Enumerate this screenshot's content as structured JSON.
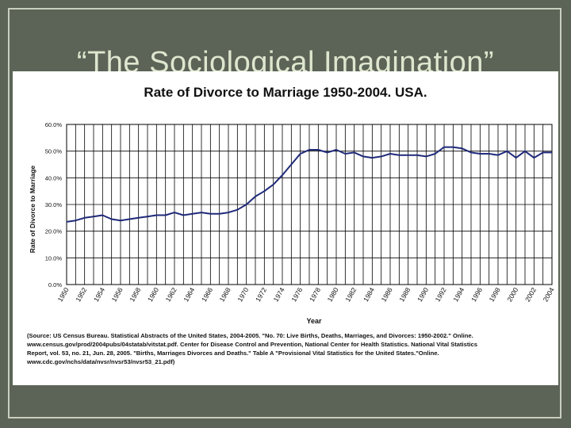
{
  "slide": {
    "title": "“The Sociological Imagination”"
  },
  "colors": {
    "background": "#5b6456",
    "title_text": "#dfe6cf",
    "line": "#1f2a7a",
    "grid": "#000000"
  },
  "chart_data": {
    "type": "line",
    "title": "Rate of Divorce to Marriage 1950-2004. USA.",
    "xlabel": "Year",
    "ylabel": "Rate of Divorce to Marriage",
    "xlim": [
      1950,
      2004
    ],
    "ylim": [
      0,
      60
    ],
    "yticks": [
      "0.0%",
      "10.0%",
      "20.0%",
      "30.0%",
      "40.0%",
      "50.0%",
      "60.0%"
    ],
    "xticks": [
      "1950",
      "1952",
      "1954",
      "1956",
      "1958",
      "1960",
      "1962",
      "1964",
      "1966",
      "1968",
      "1970",
      "1972",
      "1974",
      "1976",
      "1978",
      "1980",
      "1982",
      "1984",
      "1986",
      "1988",
      "1990",
      "1992",
      "1994",
      "1996",
      "1998",
      "2000",
      "2002",
      "2004"
    ],
    "grid": true,
    "series": [
      {
        "x": [
          1950,
          1951,
          1952,
          1953,
          1954,
          1955,
          1956,
          1957,
          1958,
          1959,
          1960,
          1961,
          1962,
          1963,
          1964,
          1965,
          1966,
          1967,
          1968,
          1969,
          1970,
          1971,
          1972,
          1973,
          1974,
          1975,
          1976,
          1977,
          1978,
          1979,
          1980,
          1981,
          1982,
          1983,
          1984,
          1985,
          1986,
          1987,
          1988,
          1989,
          1990,
          1991,
          1992,
          1993,
          1994,
          1995,
          1996,
          1997,
          1998,
          1999,
          2000,
          2001,
          2002,
          2003,
          2004
        ],
        "y": [
          23.5,
          24.0,
          25.0,
          25.5,
          26.0,
          24.5,
          24.0,
          24.5,
          25.0,
          25.5,
          26.0,
          26.0,
          27.0,
          26.0,
          26.5,
          27.0,
          26.5,
          26.5,
          27.0,
          28.0,
          30.0,
          33.0,
          35.0,
          37.5,
          41.0,
          45.0,
          49.0,
          50.5,
          50.5,
          49.5,
          50.5,
          49.0,
          49.5,
          48.0,
          47.5,
          48.0,
          49.0,
          48.5,
          48.5,
          48.5,
          48.0,
          49.0,
          51.5,
          51.5,
          51.0,
          49.5,
          49.0,
          49.0,
          48.5,
          50.0,
          47.5,
          50.0,
          47.5,
          49.5,
          49.5
        ]
      }
    ]
  },
  "source": {
    "lines": [
      "(Source: US Census Bureau. Statistical Abstracts of the United States, 2004-2005. \"No. 70: Live Births, Deaths, Marriages, and Divorces: 1950-2002.\" Online.",
      "www.census.gov/prod/2004pubs/04statab/vitstat.pdf. Center for Disease Control and Prevention, National Center for Health Statistics. National Vital Statistics",
      " Report, vol. 53, no. 21, Jun. 28, 2005. \"Births, Marriages Divorces and Deaths.\" Table A  \"Provisional Vital Statistics for the United States.\"Online.",
      "www.cdc.gov/nchs/data/nvsr/nvsr53/nvsr53_21.pdf)"
    ]
  }
}
